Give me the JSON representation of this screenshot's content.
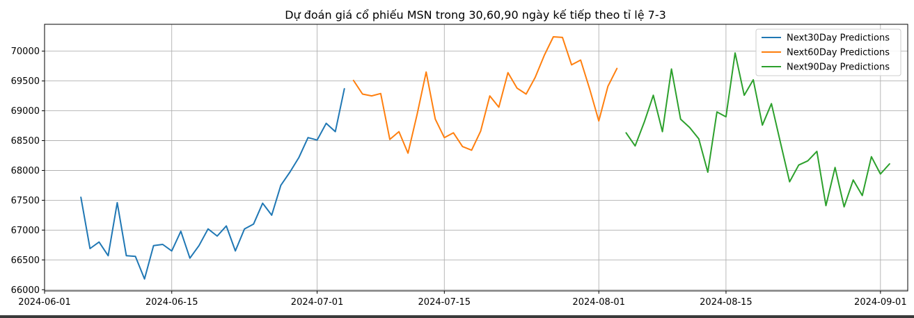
{
  "chart_data": {
    "type": "line",
    "title": "Dự đoán giá cổ phiếu MSN trong 30,60,90 ngày kế tiếp theo tỉ lệ 7-3",
    "xlabel": "",
    "ylabel": "",
    "grid": true,
    "legend_position": "top-right",
    "xlim": [
      "2024-06-01",
      "2024-09-04"
    ],
    "ylim": [
      65980,
      70450
    ],
    "x_ticks": [
      "2024-06-01",
      "2024-06-15",
      "2024-07-01",
      "2024-07-15",
      "2024-08-01",
      "2024-08-15",
      "2024-09-01"
    ],
    "y_ticks": [
      66000,
      66500,
      67000,
      67500,
      68000,
      68500,
      69000,
      69500,
      70000
    ],
    "series": [
      {
        "name": "Next30Day Predictions",
        "color": "#1f77b4",
        "x": [
          "2024-06-05",
          "2024-06-06",
          "2024-06-07",
          "2024-06-08",
          "2024-06-09",
          "2024-06-10",
          "2024-06-11",
          "2024-06-12",
          "2024-06-13",
          "2024-06-14",
          "2024-06-15",
          "2024-06-16",
          "2024-06-17",
          "2024-06-18",
          "2024-06-19",
          "2024-06-20",
          "2024-06-21",
          "2024-06-22",
          "2024-06-23",
          "2024-06-24",
          "2024-06-25",
          "2024-06-26",
          "2024-06-27",
          "2024-06-28",
          "2024-06-29",
          "2024-06-30",
          "2024-07-01",
          "2024-07-02",
          "2024-07-03",
          "2024-07-04"
        ],
        "values": [
          67550,
          66690,
          66800,
          66570,
          67460,
          66570,
          66560,
          66180,
          66740,
          66760,
          66650,
          66980,
          66530,
          66740,
          67020,
          66900,
          67070,
          66650,
          67020,
          67100,
          67450,
          67250,
          67750,
          67970,
          68220,
          68550,
          68510,
          68790,
          68650,
          69370
        ]
      },
      {
        "name": "Next60Day Predictions",
        "color": "#ff7f0e",
        "x": [
          "2024-07-05",
          "2024-07-06",
          "2024-07-07",
          "2024-07-08",
          "2024-07-09",
          "2024-07-10",
          "2024-07-11",
          "2024-07-12",
          "2024-07-13",
          "2024-07-14",
          "2024-07-15",
          "2024-07-16",
          "2024-07-17",
          "2024-07-18",
          "2024-07-19",
          "2024-07-20",
          "2024-07-21",
          "2024-07-22",
          "2024-07-23",
          "2024-07-24",
          "2024-07-25",
          "2024-07-26",
          "2024-07-27",
          "2024-07-28",
          "2024-07-29",
          "2024-07-30",
          "2024-07-31",
          "2024-08-01",
          "2024-08-02",
          "2024-08-03"
        ],
        "values": [
          69510,
          69280,
          69250,
          69290,
          68520,
          68650,
          68290,
          68940,
          69650,
          68860,
          68550,
          68630,
          68400,
          68340,
          68660,
          69250,
          69060,
          69640,
          69380,
          69280,
          69560,
          69930,
          70240,
          70230,
          69770,
          69850,
          69360,
          68830,
          69410,
          69710
        ]
      },
      {
        "name": "Next90Day Predictions",
        "color": "#2ca02c",
        "x": [
          "2024-08-04",
          "2024-08-05",
          "2024-08-06",
          "2024-08-07",
          "2024-08-08",
          "2024-08-09",
          "2024-08-10",
          "2024-08-11",
          "2024-08-12",
          "2024-08-13",
          "2024-08-14",
          "2024-08-15",
          "2024-08-16",
          "2024-08-17",
          "2024-08-18",
          "2024-08-19",
          "2024-08-20",
          "2024-08-21",
          "2024-08-22",
          "2024-08-23",
          "2024-08-24",
          "2024-08-25",
          "2024-08-26",
          "2024-08-27",
          "2024-08-28",
          "2024-08-29",
          "2024-08-30",
          "2024-08-31",
          "2024-09-01",
          "2024-09-02"
        ],
        "values": [
          68630,
          68410,
          68810,
          69260,
          68650,
          69700,
          68860,
          68720,
          68530,
          67970,
          68980,
          68900,
          69970,
          69260,
          69520,
          68760,
          69120,
          68460,
          67810,
          68090,
          68160,
          68320,
          67410,
          68050,
          67390,
          67840,
          67580,
          68230,
          67940,
          68110
        ]
      }
    ]
  }
}
